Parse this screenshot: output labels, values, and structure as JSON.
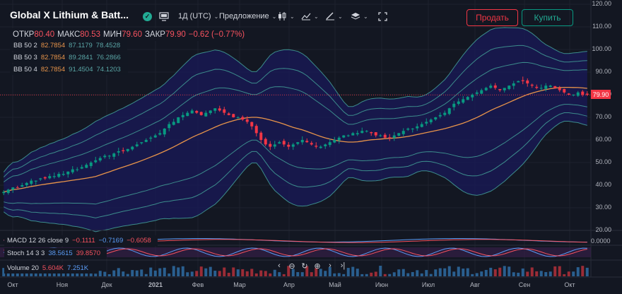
{
  "toolbar": {
    "symbol": "Global X Lithium & Batt...",
    "interval": "1Д (UTC)",
    "offer": "Предложение",
    "sell": "Продать",
    "buy": "Купить"
  },
  "ohlc": {
    "open_label": "ОТКР",
    "open": "80.40",
    "high_label": "МАКС",
    "high": "80.53",
    "low_label": "МИН",
    "low": "79.60",
    "close_label": "ЗАКР",
    "close": "79.90",
    "change": "−0.62 (−0.77%)"
  },
  "bb": [
    {
      "name": "BB 50 2",
      "basis": "82.7854",
      "upper": "87.1179",
      "lower": "78.4528"
    },
    {
      "name": "BB 50 3",
      "basis": "82.7854",
      "upper": "89.2841",
      "lower": "76.2866"
    },
    {
      "name": "BB 50 4",
      "basis": "82.7854",
      "upper": "91.4504",
      "lower": "74.1203"
    }
  ],
  "macd": {
    "name": "MACD 12 26 close 9",
    "v1": "−0.1111",
    "v2": "−0.7169",
    "v3": "−0.6058",
    "axis": "0.0000"
  },
  "stoch": {
    "name": "Stoch 14 3 3",
    "k": "38.5615",
    "d": "39.8570"
  },
  "volume": {
    "name": "Volume 20",
    "v1": "5.604K",
    "v2": "7.251K"
  },
  "price_axis": [
    "120.00",
    "110.00",
    "100.00",
    "90.00",
    "80.00",
    "70.00",
    "60.00",
    "50.00",
    "40.00",
    "30.00",
    "20.00"
  ],
  "last_price": "79.90",
  "time_axis": [
    "Окт",
    "Ноя",
    "Дек",
    "2021",
    "Фев",
    "Мар",
    "Апр",
    "Май",
    "Июн",
    "Июл",
    "Авг",
    "Сен",
    "Окт"
  ],
  "colors": {
    "up": "#089981",
    "down": "#f23645",
    "basis": "#e8944a",
    "band": "#3c8c8c",
    "fill": "#1a1a5a"
  },
  "chart_data": {
    "type": "candlestick",
    "series_close": [
      37,
      38,
      39,
      39,
      40,
      41,
      42,
      42,
      43,
      43,
      44,
      44,
      45,
      45,
      46,
      47,
      47,
      48,
      49,
      50,
      51,
      52,
      53,
      53,
      54,
      55,
      55,
      56,
      57,
      58,
      59,
      60,
      61,
      62,
      63,
      65,
      67,
      68,
      70,
      71,
      72,
      73,
      72,
      71,
      72,
      73,
      74,
      73,
      72,
      71,
      70,
      70,
      69,
      68,
      66,
      63,
      60,
      58,
      57,
      58,
      59,
      58,
      57,
      58,
      59,
      60,
      59,
      58,
      57,
      57,
      58,
      59,
      60,
      61,
      62,
      62,
      63,
      63,
      64,
      64,
      63,
      62,
      62,
      61,
      61,
      62,
      63,
      64,
      65,
      65,
      66,
      67,
      68,
      69,
      70,
      71,
      72,
      74,
      76,
      77,
      78,
      79,
      80,
      81,
      82,
      83,
      84,
      83,
      82,
      83,
      84,
      85,
      86,
      86,
      85,
      84,
      83,
      83,
      84,
      84,
      83,
      82,
      81,
      80,
      80,
      81,
      80,
      80
    ]
  }
}
